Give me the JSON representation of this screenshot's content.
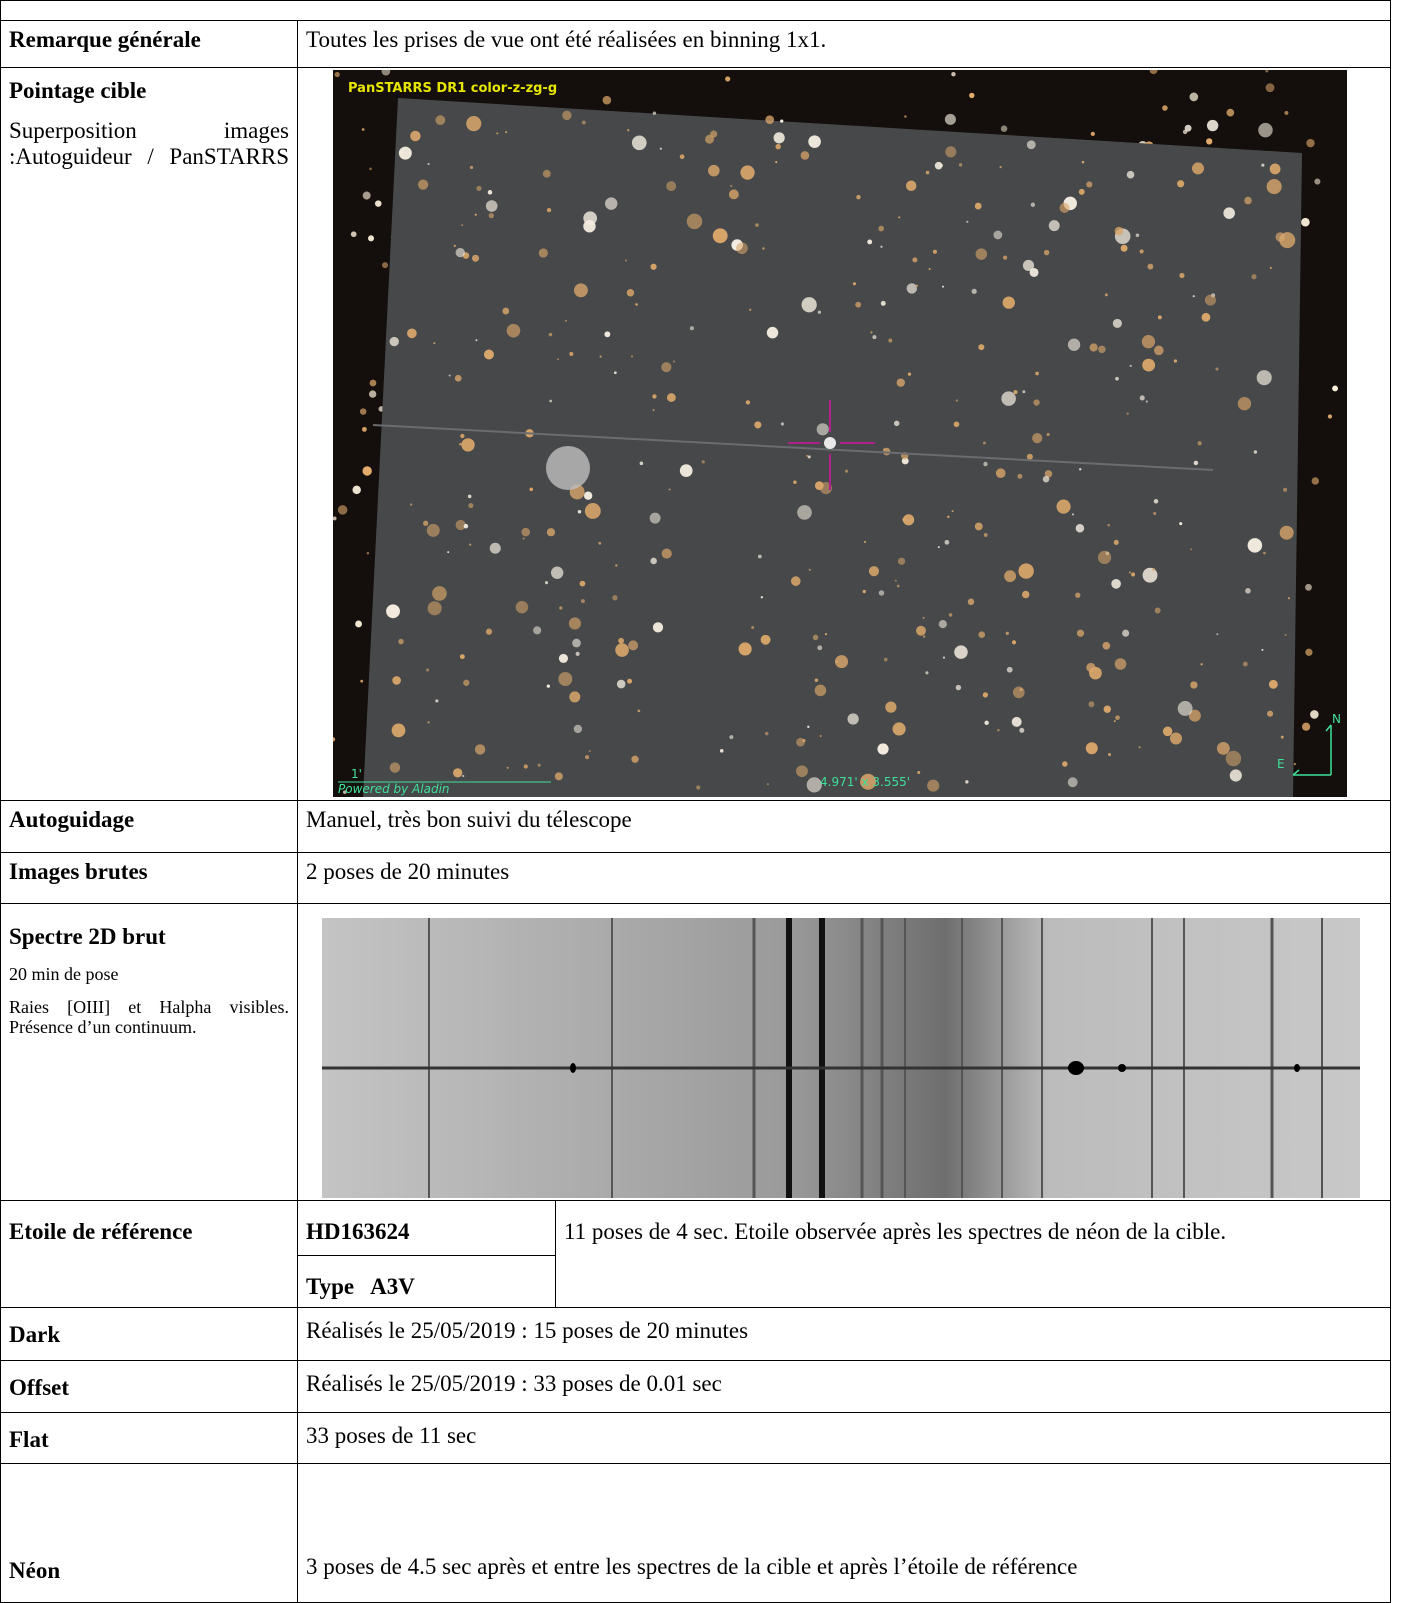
{
  "rows": [
    {
      "label": "Remarque générale",
      "text": "Toutes les prises de vue ont été réalisées en binning 1x1."
    },
    {
      "label": "Pointage cible",
      "sublabel": "Superposition images :Autoguideur / PanSTARRS",
      "image": {
        "title": "PanSTARRS DR1 color-z-zg-g",
        "scale": "1'",
        "credit": "Powered by Aladin",
        "fov": "4.971' x 3.555'",
        "north": "N",
        "east": "E"
      }
    },
    {
      "label": "Autoguidage",
      "text": "Manuel, très bon suivi du télescope"
    },
    {
      "label": "Images brutes",
      "text": "2 poses de 20 minutes"
    },
    {
      "label": "Spectre 2D brut",
      "notes": [
        "20 min de pose",
        "Raies [OIII] et Halpha visibles. Présence d’un continuum."
      ]
    },
    {
      "label": "Etoile de référence",
      "star": "HD163624",
      "type": "Type   A3V",
      "text": "11 poses de 4 sec. Etoile observée après les spectres de néon de la cible."
    },
    {
      "label": "Dark",
      "text": "Réalisés le 25/05/2019 : 15 poses de 20 minutes"
    },
    {
      "label": "Offset",
      "text": "Réalisés le 25/05/2019 : 33 poses de 0.01 sec"
    },
    {
      "label": "Flat",
      "text": "33 poses de 11 sec"
    },
    {
      "label": "Néon",
      "text": "3 poses de 4.5 sec après et entre les spectres de la cible et après l’étoile de référence"
    }
  ]
}
